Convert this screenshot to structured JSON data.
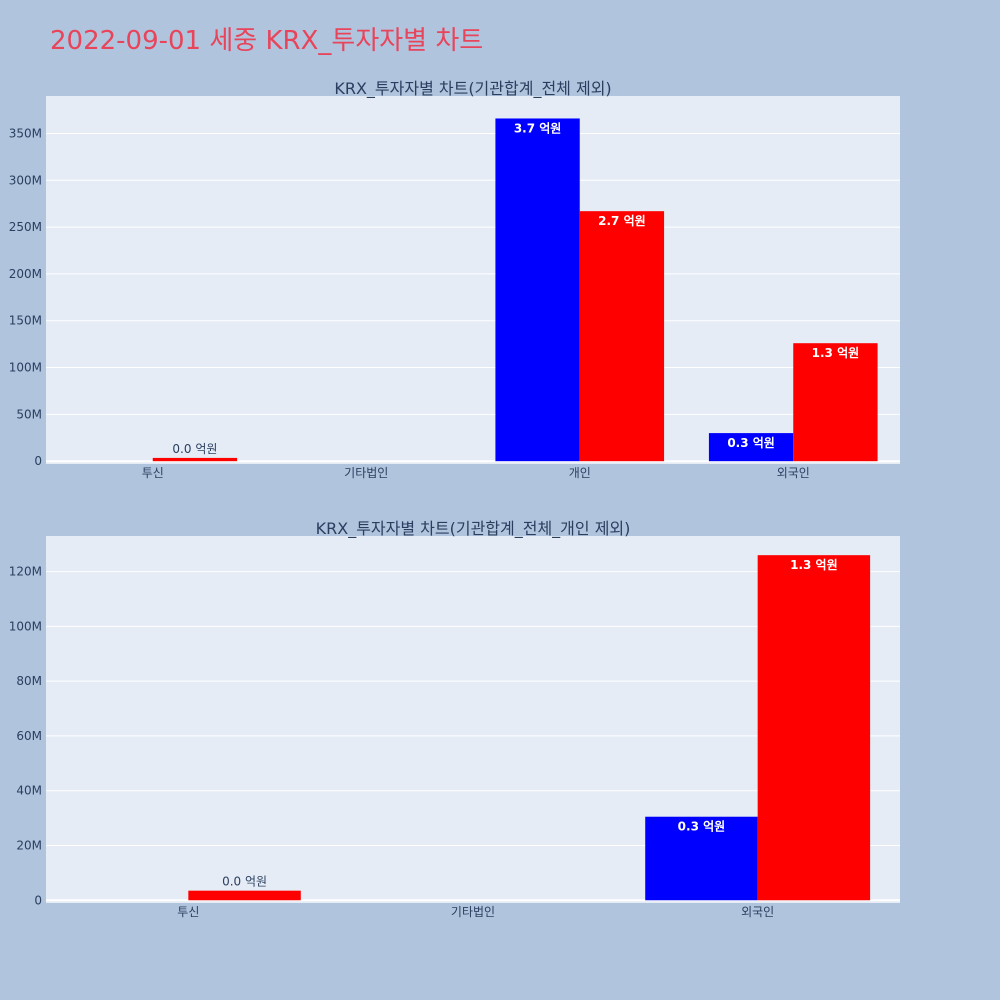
{
  "page": {
    "title": "2022-09-01 세중 KRX_투자자별 차트",
    "background": "#b0c4de",
    "plot_background": "#e5ecf6",
    "title_color": "#e8445a",
    "text_color": "#2a3f5f"
  },
  "chart_data": [
    {
      "type": "bar",
      "title": "KRX_투자자별 차트(기관합계_전체 제외)",
      "categories": [
        "투신",
        "기타법인",
        "개인",
        "외국인"
      ],
      "ylim": [
        -3000000,
        390000000
      ],
      "yticks": [
        0,
        50000000,
        100000000,
        150000000,
        200000000,
        250000000,
        300000000,
        350000000
      ],
      "ytick_labels": [
        "0",
        "50M",
        "100M",
        "150M",
        "200M",
        "250M",
        "300M",
        "350M"
      ],
      "grid": true,
      "series": [
        {
          "color": "#0000ff",
          "values": [
            0,
            0,
            366000000,
            30000000
          ],
          "labels": [
            "",
            "",
            "3.7 억원",
            "0.3 억원"
          ]
        },
        {
          "color": "#ff0000",
          "values": [
            3500000,
            0,
            267000000,
            126000000
          ],
          "labels": [
            "0.0 억원",
            "",
            "2.7 억원",
            "1.3 억원"
          ]
        }
      ]
    },
    {
      "type": "bar",
      "title": "KRX_투자자별 차트(기관합계_전체_개인 제외)",
      "categories": [
        "투신",
        "기타법인",
        "외국인"
      ],
      "ylim": [
        -1000000,
        133000000
      ],
      "yticks": [
        0,
        20000000,
        40000000,
        60000000,
        80000000,
        100000000,
        120000000
      ],
      "ytick_labels": [
        "0",
        "20M",
        "40M",
        "60M",
        "80M",
        "100M",
        "120M"
      ],
      "grid": true,
      "series": [
        {
          "color": "#0000ff",
          "values": [
            0,
            0,
            30500000
          ],
          "labels": [
            "",
            "",
            "0.3 억원"
          ]
        },
        {
          "color": "#ff0000",
          "values": [
            3500000,
            0,
            126000000
          ],
          "labels": [
            "0.0 억원",
            "",
            "1.3 억원"
          ]
        }
      ]
    }
  ]
}
